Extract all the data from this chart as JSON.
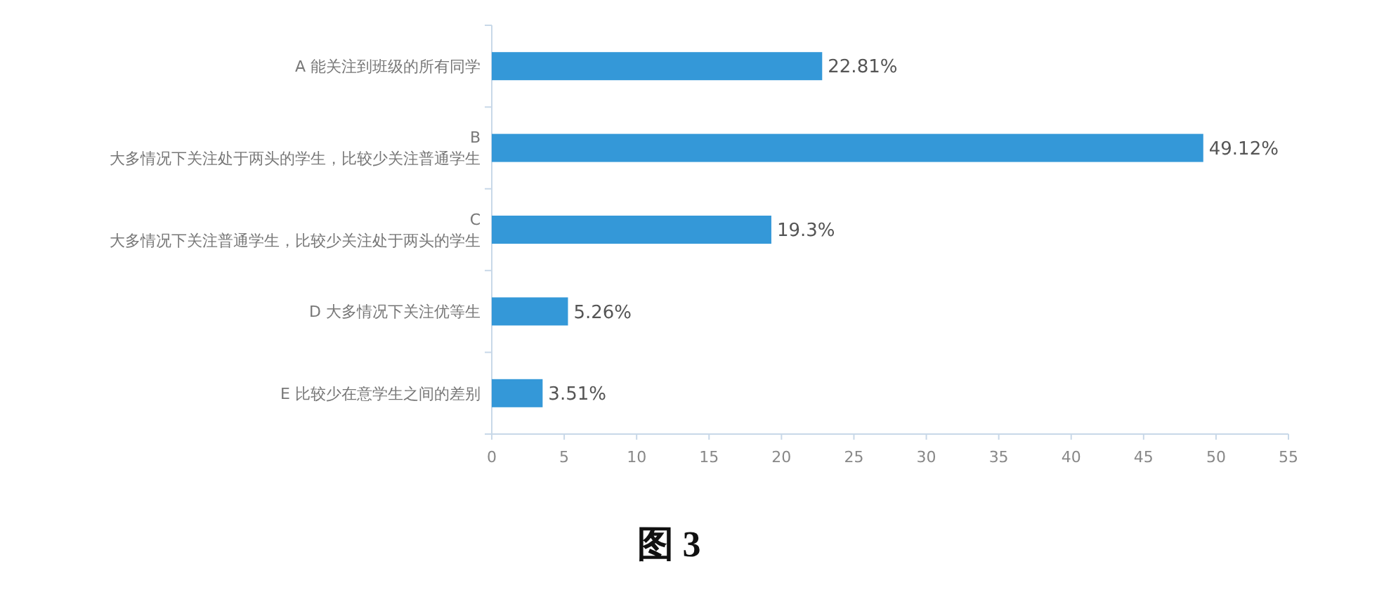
{
  "chart_data": {
    "type": "bar",
    "orientation": "horizontal",
    "title": "图 3",
    "categories": [
      "A 能关注到班级的所有同学",
      "B\n大多情况下关注处于两头的学生，比较少关注普通学生",
      "C\n大多情况下关注普通学生，比较少关注处于两头的学生",
      "D 大多情况下关注优等生",
      "E 比较少在意学生之间的差别"
    ],
    "values": [
      22.81,
      49.12,
      19.3,
      5.26,
      3.51
    ],
    "value_labels": [
      "22.81%",
      "49.12%",
      "19.3%",
      "5.26%",
      "3.51%"
    ],
    "color": "#3498d8",
    "xlim": [
      0,
      55
    ],
    "xticks": [
      0,
      5,
      10,
      15,
      20,
      25,
      30,
      35,
      40,
      45,
      50,
      55
    ],
    "grid": false
  }
}
